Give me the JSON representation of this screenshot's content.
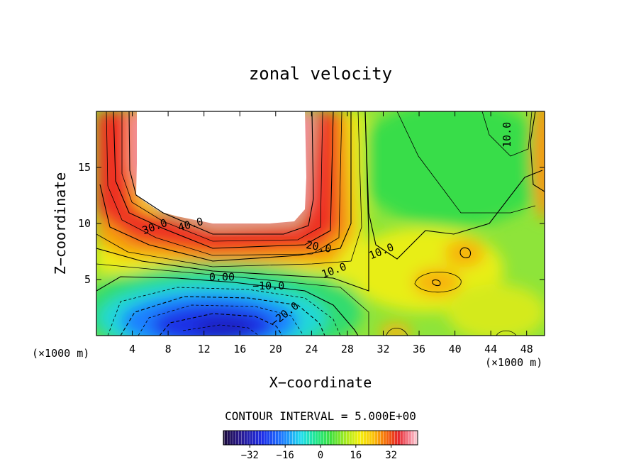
{
  "chart_data": {
    "type": "heatmap",
    "title": "zonal velocity",
    "xlabel": "X−coordinate",
    "ylabel": "Z−coordinate",
    "x_unit": "(×1000 m)",
    "y_unit": "(×1000 m)",
    "xlim": [
      0,
      50
    ],
    "ylim": [
      0,
      20
    ],
    "x_ticks": [
      4,
      8,
      12,
      16,
      20,
      24,
      28,
      32,
      36,
      40,
      44,
      48
    ],
    "x_tick_labels": [
      "4",
      "8",
      "12",
      "16",
      "20",
      "24",
      "28",
      "32",
      "36",
      "40",
      "44",
      "48"
    ],
    "y_ticks": [
      5,
      10,
      15
    ],
    "y_tick_labels": [
      "5",
      "10",
      "15"
    ],
    "undefined_region": "white (values above colour range) between x 4–24, z 9–20",
    "contour_labels": [
      {
        "text": "40.0",
        "x": 10.5,
        "z": 9.6,
        "rotation": 15
      },
      {
        "text": "30.0",
        "x": 6.5,
        "z": 9.4,
        "rotation": 20
      },
      {
        "text": "20.0",
        "x": 24.8,
        "z": 7.6,
        "rotation": -10
      },
      {
        "text": "10.0",
        "x": 26.5,
        "z": 5.5,
        "rotation": 20
      },
      {
        "text": "10.0",
        "x": 31.8,
        "z": 7.2,
        "rotation": 22
      },
      {
        "text": "10.0",
        "x": 45.8,
        "z": 17.6,
        "rotation": 90
      },
      {
        "text": "0.00",
        "x": 14.0,
        "z": 4.9,
        "rotation": 0
      },
      {
        "text": "−10.0",
        "x": 19.2,
        "z": 4.1,
        "rotation": 0
      },
      {
        "text": "−20.0",
        "x": 21.0,
        "z": 1.6,
        "rotation": 38
      }
    ],
    "contour_interval_label": "CONTOUR INTERVAL = 5.000E+00",
    "colorbar": {
      "range": [
        -44,
        44
      ],
      "ticks": [
        -32,
        -16,
        0,
        16,
        32
      ],
      "tick_labels": [
        "−32",
        "−16",
        "0",
        "16",
        "32"
      ]
    }
  },
  "colors": {
    "background": "#ffffff",
    "frame": "#000000",
    "colormap": [
      "#1a0a3a",
      "#2a1a8a",
      "#1e2ee8",
      "#1e78ff",
      "#22ddee",
      "#22e88a",
      "#3ee040",
      "#a6ea20",
      "#f4f00e",
      "#fbc40a",
      "#f56a0e",
      "#e6242a",
      "#f58a9a",
      "#fbd4da"
    ]
  }
}
